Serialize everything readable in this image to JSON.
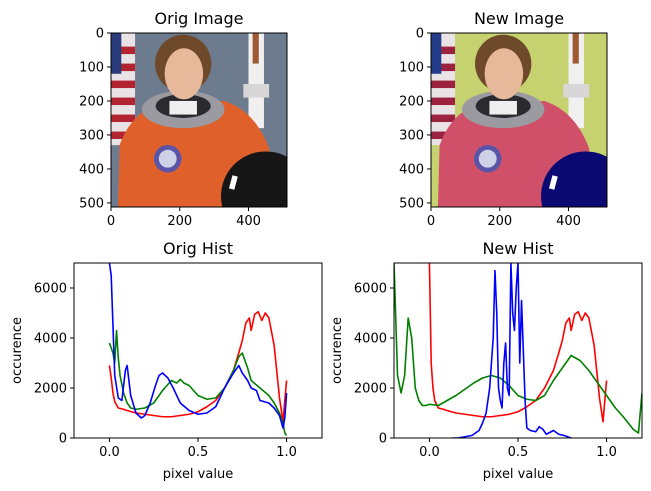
{
  "chart_data": [
    {
      "type": "image",
      "title": "Orig Image",
      "xlim": [
        0,
        512
      ],
      "ylim": [
        512,
        0
      ],
      "xticks": [
        0,
        200,
        400
      ],
      "yticks": [
        0,
        100,
        200,
        300,
        400,
        500
      ],
      "scene": {
        "sky": "#6d7b8f",
        "suit": "#e0602c",
        "helmet": "#161616",
        "flag_red": "#b22530",
        "flag_blue": "#2a3b7c"
      }
    },
    {
      "type": "image",
      "title": "New Image",
      "xlim": [
        0,
        512
      ],
      "ylim": [
        512,
        0
      ],
      "xticks": [
        0,
        200,
        400
      ],
      "yticks": [
        0,
        100,
        200,
        300,
        400,
        500
      ],
      "scene": {
        "sky": "#c5d26f",
        "suit": "#d0506a",
        "helmet": "#0b0a73",
        "flag_red": "#9c2340",
        "flag_blue": "#233c8a"
      }
    },
    {
      "type": "line",
      "title": "Orig Hist",
      "xlabel": "pixel value",
      "ylabel": "occurence",
      "xlim": [
        -0.2,
        1.2
      ],
      "ylim": [
        0,
        7000
      ],
      "xticks": [
        0.0,
        0.5,
        1.0
      ],
      "xtick_labels": [
        "0.0",
        "0.5",
        "1.0"
      ],
      "yticks": [
        0,
        2000,
        4000,
        6000
      ],
      "series": [
        {
          "color": "#ff0000",
          "x": [
            0.0,
            0.01,
            0.02,
            0.03,
            0.05,
            0.08,
            0.1,
            0.15,
            0.2,
            0.25,
            0.3,
            0.35,
            0.4,
            0.45,
            0.5,
            0.55,
            0.6,
            0.65,
            0.7,
            0.73,
            0.75,
            0.77,
            0.79,
            0.8,
            0.82,
            0.84,
            0.86,
            0.88,
            0.9,
            0.93,
            0.96,
            0.98,
            0.99,
            1.0
          ],
          "y": [
            2900,
            2400,
            1800,
            1450,
            1200,
            1150,
            1100,
            1000,
            950,
            900,
            850,
            850,
            900,
            950,
            1050,
            1250,
            1500,
            2000,
            2700,
            3400,
            3900,
            4600,
            4800,
            4300,
            4950,
            5050,
            4700,
            5000,
            4800,
            3700,
            1600,
            650,
            1500,
            2300
          ]
        },
        {
          "color": "#008000",
          "x": [
            0.0,
            0.02,
            0.03,
            0.04,
            0.05,
            0.06,
            0.08,
            0.1,
            0.12,
            0.15,
            0.2,
            0.25,
            0.3,
            0.35,
            0.38,
            0.4,
            0.42,
            0.45,
            0.5,
            0.55,
            0.6,
            0.65,
            0.7,
            0.73,
            0.75,
            0.78,
            0.8,
            0.85,
            0.9,
            0.93,
            0.96,
            0.98,
            0.99,
            1.0
          ],
          "y": [
            3800,
            3400,
            3000,
            4300,
            3200,
            2500,
            1800,
            1400,
            1200,
            1150,
            1200,
            1400,
            1900,
            2300,
            2200,
            2350,
            2200,
            2100,
            1700,
            1550,
            1600,
            2000,
            2700,
            3250,
            3400,
            2800,
            2300,
            2000,
            1700,
            1400,
            1000,
            600,
            200,
            100
          ]
        },
        {
          "color": "#0000ff",
          "x": [
            0.0,
            0.01,
            0.02,
            0.03,
            0.05,
            0.07,
            0.09,
            0.1,
            0.12,
            0.15,
            0.18,
            0.2,
            0.23,
            0.26,
            0.28,
            0.3,
            0.33,
            0.36,
            0.4,
            0.45,
            0.5,
            0.55,
            0.6,
            0.65,
            0.7,
            0.73,
            0.75,
            0.78,
            0.8,
            0.83,
            0.85,
            0.9,
            0.93,
            0.96,
            0.98,
            0.99,
            1.0
          ],
          "y": [
            7000,
            6500,
            4500,
            2500,
            1600,
            1500,
            2700,
            2900,
            1700,
            1000,
            800,
            900,
            1400,
            2100,
            2500,
            2600,
            2400,
            2000,
            1400,
            1100,
            950,
            1000,
            1250,
            2000,
            2600,
            2900,
            2600,
            2300,
            2000,
            1900,
            1500,
            1400,
            1200,
            900,
            400,
            800,
            1800
          ]
        }
      ]
    },
    {
      "type": "line",
      "title": "New Hist",
      "xlabel": "pixel value",
      "ylabel": "occurence",
      "xlim": [
        -0.2,
        1.2
      ],
      "ylim": [
        0,
        7000
      ],
      "xticks": [
        0.0,
        0.5,
        1.0
      ],
      "xtick_labels": [
        "0.0",
        "0.5",
        "1.0"
      ],
      "yticks": [
        0,
        2000,
        4000,
        6000
      ],
      "series": [
        {
          "color": "#ff0000",
          "x": [
            0.0,
            0.01,
            0.02,
            0.03,
            0.05,
            0.08,
            0.1,
            0.15,
            0.2,
            0.25,
            0.3,
            0.35,
            0.4,
            0.45,
            0.5,
            0.55,
            0.6,
            0.65,
            0.7,
            0.73,
            0.75,
            0.77,
            0.79,
            0.8,
            0.82,
            0.84,
            0.86,
            0.88,
            0.9,
            0.93,
            0.96,
            0.98,
            0.99,
            1.0
          ],
          "y": [
            7000,
            3000,
            2000,
            1500,
            1200,
            1150,
            1100,
            1000,
            950,
            900,
            850,
            850,
            900,
            950,
            1050,
            1250,
            1500,
            2000,
            2700,
            3400,
            3900,
            4600,
            4800,
            4300,
            4950,
            5050,
            4700,
            5000,
            4800,
            3700,
            1600,
            650,
            1500,
            2300
          ]
        },
        {
          "color": "#008000",
          "x": [
            -0.2,
            -0.18,
            -0.16,
            -0.14,
            -0.12,
            -0.1,
            -0.08,
            -0.06,
            -0.04,
            -0.02,
            0.0,
            0.05,
            0.1,
            0.15,
            0.2,
            0.25,
            0.3,
            0.35,
            0.4,
            0.45,
            0.5,
            0.55,
            0.6,
            0.65,
            0.7,
            0.75,
            0.8,
            0.85,
            0.9,
            0.95,
            1.0,
            1.05,
            1.1,
            1.15,
            1.18,
            1.2
          ],
          "y": [
            7000,
            2500,
            1800,
            2500,
            4800,
            4000,
            2000,
            1500,
            1300,
            1300,
            1350,
            1300,
            1500,
            1700,
            1950,
            2200,
            2400,
            2500,
            2400,
            2100,
            1700,
            1550,
            1500,
            1700,
            2300,
            2800,
            3300,
            3100,
            2700,
            2200,
            1700,
            1200,
            800,
            350,
            200,
            1800
          ]
        },
        {
          "color": "#0000ff",
          "x": [
            0.13,
            0.16,
            0.2,
            0.24,
            0.28,
            0.3,
            0.32,
            0.34,
            0.36,
            0.37,
            0.38,
            0.39,
            0.4,
            0.41,
            0.42,
            0.43,
            0.44,
            0.45,
            0.46,
            0.47,
            0.48,
            0.49,
            0.5,
            0.51,
            0.52,
            0.53,
            0.54,
            0.55,
            0.57,
            0.6,
            0.62,
            0.64,
            0.66,
            0.7,
            0.73,
            0.76,
            0.78,
            0.8
          ],
          "y": [
            0,
            0,
            50,
            100,
            300,
            600,
            1000,
            2000,
            4000,
            6700,
            5000,
            2000,
            1500,
            1200,
            3000,
            3800,
            2000,
            1700,
            7000,
            5000,
            4300,
            6000,
            7000,
            3000,
            5500,
            3500,
            1500,
            400,
            300,
            250,
            450,
            350,
            150,
            300,
            150,
            100,
            50,
            0
          ]
        }
      ]
    }
  ]
}
